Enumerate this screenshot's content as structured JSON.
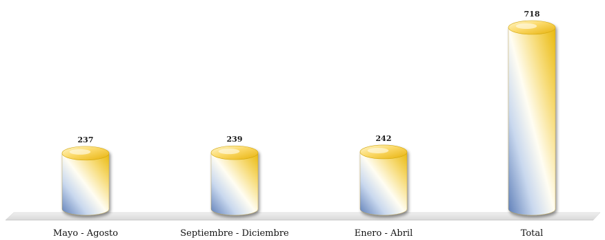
{
  "chart_data": {
    "type": "bar",
    "categories": [
      "Mayo - Agosto",
      "Septiembre - Diciembre",
      "Enero - Abril",
      "Total"
    ],
    "values": [
      237,
      239,
      242,
      718
    ],
    "title": "",
    "xlabel": "",
    "ylabel": "",
    "ylim": [
      0,
      718
    ],
    "grid": false,
    "legend": "none",
    "colors": {
      "bar_gold": "#f2c318",
      "bar_light": "#fffbe8",
      "bar_blue": "#6f8fc4",
      "floor": "#e6e6e6"
    }
  }
}
